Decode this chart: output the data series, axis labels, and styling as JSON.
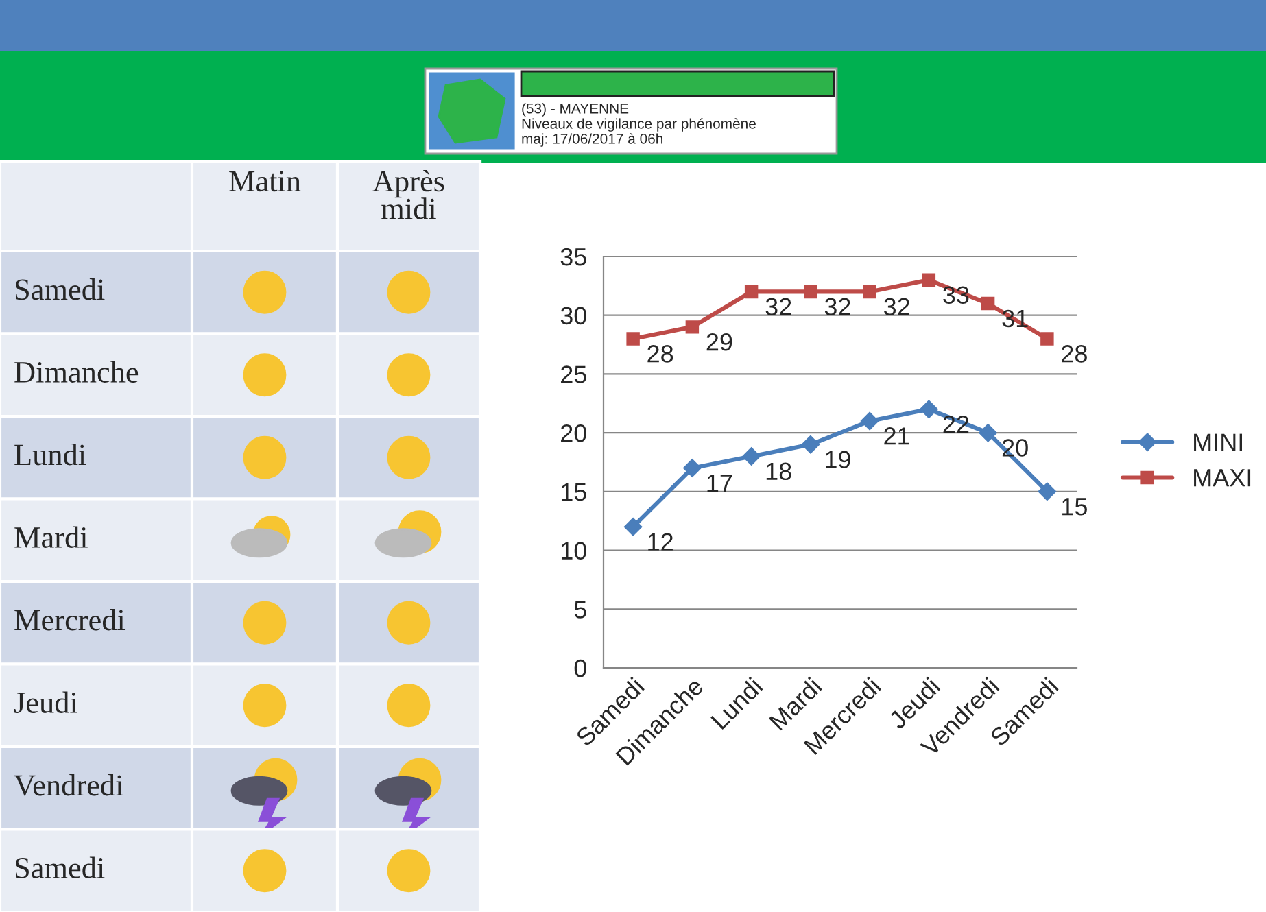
{
  "chart_data": [
    {
      "type": "other",
      "categories": [
        "Matin",
        "Après midi"
      ],
      "y_categories": [
        "Samedi",
        "Dimanche",
        "Lundi",
        "Mardi",
        "Mercredi",
        "Jeudi",
        "Vendredi",
        "Samedi"
      ],
      "annotations": [
        "(53) - MAYENNE",
        "Niveaux de vigilance par phénomène",
        "maj: 17/06/2017 à 06h"
      ]
    },
    {
      "type": "line",
      "categories": [
        "Samedi",
        "Dimanche",
        "Lundi",
        "Mardi",
        "Mercredi",
        "Jeudi",
        "Vendredi",
        "Samedi"
      ],
      "series": [
        {
          "name": "MINI",
          "color": "#4a7ebb",
          "marker": "diamond",
          "values": [
            12,
            17,
            18,
            19,
            21,
            22,
            20,
            15
          ]
        },
        {
          "name": "MAXI",
          "color": "#be4b48",
          "marker": "square",
          "values": [
            28,
            29,
            32,
            32,
            32,
            33,
            31,
            28
          ]
        }
      ],
      "ylim": [
        0,
        35
      ],
      "yticks": [
        0,
        5,
        10,
        15,
        20,
        25,
        30,
        35
      ],
      "grid": "y",
      "legend": "right",
      "data_labels": true
    }
  ]
}
